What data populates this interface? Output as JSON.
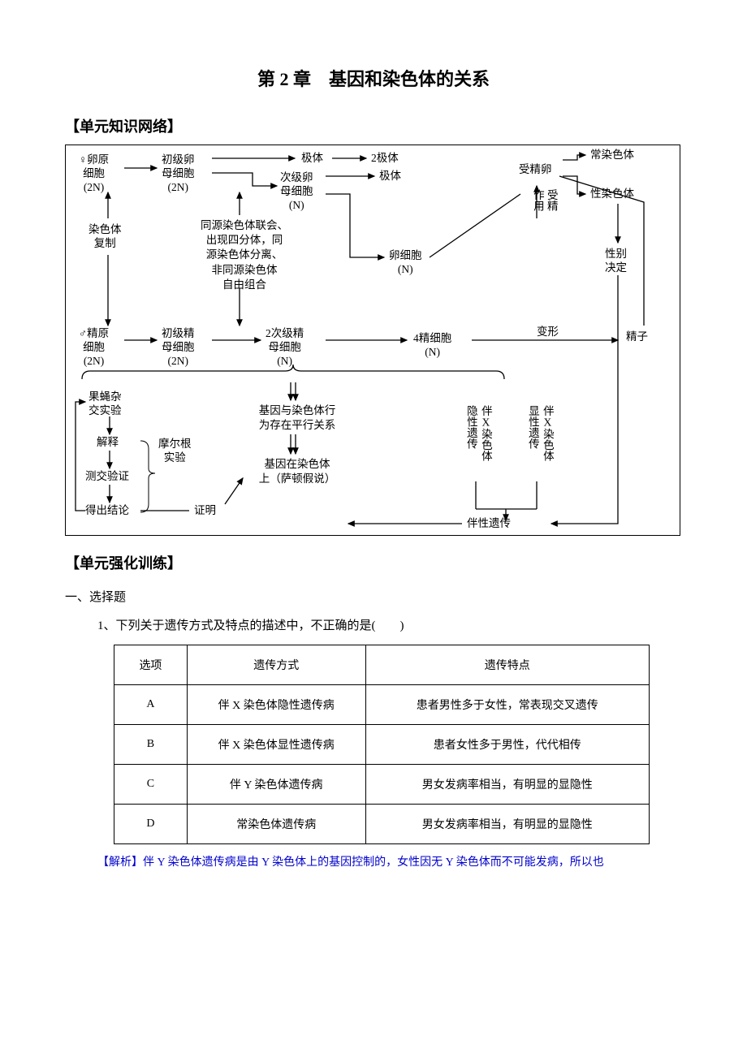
{
  "chapter_title": "第 2 章　基因和染色体的关系",
  "section_network": "【单元知识网络】",
  "section_practice": "【单元强化训练】",
  "subsection_choice": "一、选择题",
  "question1": "1、下列关于遗传方式及特点的描述中，不正确的是(　　)",
  "table": {
    "headers": [
      "选项",
      "遗传方式",
      "遗传特点"
    ],
    "rows": [
      [
        "A",
        "伴 X 染色体隐性遗传病",
        "患者男性多于女性，常表现交叉遗传"
      ],
      [
        "B",
        "伴 X 染色体显性遗传病",
        "患者女性多于男性，代代相传"
      ],
      [
        "C",
        "伴 Y 染色体遗传病",
        "男女发病率相当，有明显的显隐性"
      ],
      [
        "D",
        "常染色体遗传病",
        "男女发病率相当，有明显的显隐性"
      ]
    ],
    "col_widths": [
      "90px",
      "220px",
      "350px"
    ]
  },
  "analysis": "【解析】伴 Y 染色体遗传病是由 Y 染色体上的基因控制的，女性因无 Y 染色体而不可能发病，所以也",
  "diagram": {
    "nodes": {
      "oo_female": "♀卵原\n细胞\n(2N)",
      "primary_oo": "初级卵\n母细胞\n(2N)",
      "polar1": "极体",
      "polar2": "2极体",
      "secondary_oo": "次级卵\n母细胞\n(N)",
      "polar3": "极体",
      "egg": "卵细胞\n(N)",
      "fert_egg": "受精卵",
      "fert_action": "受精\n作用",
      "autosome": "常染色体",
      "sexchrom": "性染色体",
      "sex_det": "性别\n决定",
      "replication": "染色体\n复制",
      "meiosis_events": "同源染色体联会、\n出现四分体，同\n源染色体分离、\n非同源染色体\n自由组合",
      "sp_male": "♂精原\n细胞\n(2N)",
      "primary_sp": "初级精\n母细胞\n(2N)",
      "secondary_sp": "2次级精\n母细胞\n(N)",
      "spermatid": "4精细胞\n(N)",
      "transform": "变形",
      "sperm": "精子",
      "fly_exp": "果蝇杂\n交实验",
      "explain": "解释",
      "morgan": "摩尔根\n实验",
      "testcross": "测交验证",
      "conclusion": "得出结论",
      "prove": "证明",
      "parallel": "基因与染色体行\n为存在平行关系",
      "sutton": "基因在染色体\n上（萨顿假说）",
      "xlinked_rec": "伴X染色体",
      "recessive": "隐性遗传",
      "xlinked_dom": "伴X染色体",
      "dominant": "显性遗传",
      "sex_linked": "伴性遗传"
    },
    "colors": {
      "line": "#000000",
      "text": "#000000"
    }
  }
}
